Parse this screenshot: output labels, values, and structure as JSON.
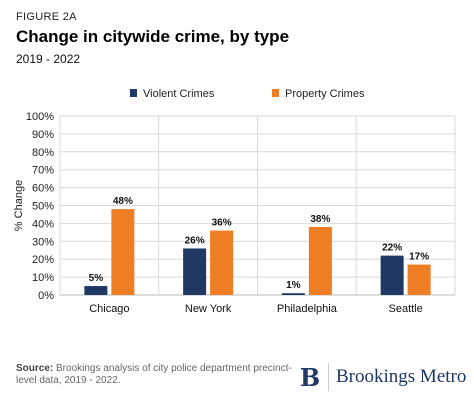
{
  "figure_label": "FIGURE 2A",
  "title": "Change in citywide crime, by type",
  "subtitle": "2019 - 2022",
  "source_label": "Source:",
  "source_text": "Brookings analysis of city police department precinct-level data, 2019 - 2022.",
  "logo": {
    "mark": "B",
    "text": "Brookings Metro"
  },
  "colors": {
    "violent": "#1f3864",
    "property": "#ee7d23",
    "grid": "#d9d9d9"
  },
  "chart_data": {
    "type": "bar",
    "categories": [
      "Chicago",
      "New York",
      "Philadelphia",
      "Seattle"
    ],
    "series": [
      {
        "name": "Violent Crimes",
        "values": [
          5,
          26,
          1,
          22
        ],
        "labels": [
          "5%",
          "26%",
          "1%",
          "22%"
        ]
      },
      {
        "name": "Property Crimes",
        "values": [
          48,
          36,
          38,
          17
        ],
        "labels": [
          "48%",
          "36%",
          "38%",
          "17%"
        ]
      }
    ],
    "ylabel": "% Change",
    "ylim": [
      0,
      100
    ],
    "yticks": [
      0,
      10,
      20,
      30,
      40,
      50,
      60,
      70,
      80,
      90,
      100
    ],
    "ytick_labels": [
      "0%",
      "10%",
      "20%",
      "30%",
      "40%",
      "50%",
      "60%",
      "70%",
      "80%",
      "90%",
      "100%"
    ],
    "legend_position": "top",
    "grid": true
  }
}
